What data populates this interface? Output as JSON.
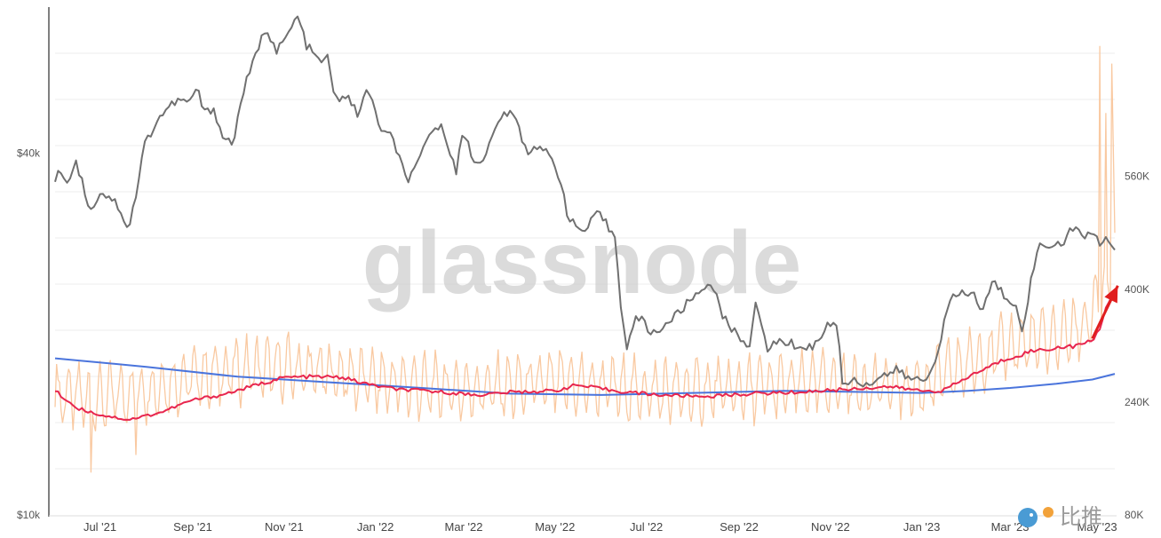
{
  "watermark": "glassnode",
  "badge": {
    "text": "比推"
  },
  "colors": {
    "price": "#707070",
    "addresses_daily": "#f9c9a1",
    "ma_short": "#e8264e",
    "ma_long": "#4a74dc",
    "annotation_arrow": "#e01e1e",
    "grid": "#ececec",
    "axis": "#555555"
  },
  "chart_data": {
    "type": "line",
    "title": "",
    "xlabel": "",
    "ylabel": "",
    "x_tick_labels": [
      "Jul '21",
      "Sep '21",
      "Nov '21",
      "Jan '22",
      "Mar '22",
      "May '22",
      "Jul '22",
      "Sep '22",
      "Nov '22",
      "Jan '23",
      "Mar '23",
      "May '23"
    ],
    "x_range": [
      "2021-06-01",
      "2023-05-10"
    ],
    "left_axis": {
      "scale": "log",
      "range": [
        10000,
        70000
      ],
      "tick_labels": [
        {
          "label": "$10k",
          "value": 10000
        },
        {
          "label": "$40k",
          "value": 40000
        }
      ]
    },
    "right_axis": {
      "scale": "linear",
      "range": [
        80000,
        800000
      ],
      "tick_labels": [
        {
          "label": "80K",
          "value": 80000
        },
        {
          "label": "240K",
          "value": 240000
        },
        {
          "label": "400K",
          "value": 400000
        },
        {
          "label": "560K",
          "value": 560000
        }
      ]
    },
    "grid": true,
    "legend": "none",
    "series": [
      {
        "id": "price",
        "axis": "left",
        "style": "line",
        "points": [
          [
            "2021-06-01",
            36000
          ],
          [
            "2021-06-05",
            37500
          ],
          [
            "2021-06-10",
            35500
          ],
          [
            "2021-06-15",
            39000
          ],
          [
            "2021-06-20",
            35000
          ],
          [
            "2021-06-25",
            32000
          ],
          [
            "2021-07-01",
            34500
          ],
          [
            "2021-07-10",
            33500
          ],
          [
            "2021-07-15",
            32000
          ],
          [
            "2021-07-20",
            29800
          ],
          [
            "2021-07-25",
            34000
          ],
          [
            "2021-07-31",
            41500
          ],
          [
            "2021-08-10",
            46000
          ],
          [
            "2021-08-15",
            47500
          ],
          [
            "2021-08-22",
            49000
          ],
          [
            "2021-08-28",
            48500
          ],
          [
            "2021-09-05",
            51000
          ],
          [
            "2021-09-08",
            46500
          ],
          [
            "2021-09-15",
            47500
          ],
          [
            "2021-09-21",
            42500
          ],
          [
            "2021-09-28",
            41500
          ],
          [
            "2021-10-05",
            51000
          ],
          [
            "2021-10-12",
            57000
          ],
          [
            "2021-10-20",
            65000
          ],
          [
            "2021-10-27",
            59000
          ],
          [
            "2021-11-02",
            62000
          ],
          [
            "2021-11-10",
            67500
          ],
          [
            "2021-11-16",
            60500
          ],
          [
            "2021-11-24",
            57000
          ],
          [
            "2021-11-30",
            57500
          ],
          [
            "2021-12-05",
            49000
          ],
          [
            "2021-12-12",
            50000
          ],
          [
            "2021-12-20",
            46500
          ],
          [
            "2021-12-27",
            51000
          ],
          [
            "2022-01-05",
            43500
          ],
          [
            "2022-01-12",
            42500
          ],
          [
            "2022-01-22",
            36000
          ],
          [
            "2022-01-28",
            37500
          ],
          [
            "2022-02-08",
            44000
          ],
          [
            "2022-02-15",
            44000
          ],
          [
            "2022-02-24",
            37500
          ],
          [
            "2022-03-01",
            43500
          ],
          [
            "2022-03-08",
            38500
          ],
          [
            "2022-03-15",
            39500
          ],
          [
            "2022-03-28",
            47000
          ],
          [
            "2022-04-05",
            45500
          ],
          [
            "2022-04-12",
            40000
          ],
          [
            "2022-04-20",
            41500
          ],
          [
            "2022-04-30",
            38500
          ],
          [
            "2022-05-05",
            36000
          ],
          [
            "2022-05-10",
            31000
          ],
          [
            "2022-05-20",
            29500
          ],
          [
            "2022-05-30",
            31800
          ],
          [
            "2022-06-10",
            29000
          ],
          [
            "2022-06-14",
            22500
          ],
          [
            "2022-06-18",
            19000
          ],
          [
            "2022-06-25",
            21500
          ],
          [
            "2022-07-05",
            20000
          ],
          [
            "2022-07-15",
            20800
          ],
          [
            "2022-07-25",
            22000
          ],
          [
            "2022-08-01",
            23000
          ],
          [
            "2022-08-14",
            24500
          ],
          [
            "2022-08-20",
            21500
          ],
          [
            "2022-08-30",
            20000
          ],
          [
            "2022-09-08",
            19200
          ],
          [
            "2022-09-12",
            22200
          ],
          [
            "2022-09-20",
            19000
          ],
          [
            "2022-09-30",
            19500
          ],
          [
            "2022-10-10",
            19100
          ],
          [
            "2022-10-20",
            19000
          ],
          [
            "2022-10-30",
            20600
          ],
          [
            "2022-11-05",
            21000
          ],
          [
            "2022-11-09",
            16500
          ],
          [
            "2022-11-15",
            16800
          ],
          [
            "2022-11-25",
            16500
          ],
          [
            "2022-12-05",
            17000
          ],
          [
            "2022-12-15",
            17400
          ],
          [
            "2022-12-25",
            16800
          ],
          [
            "2023-01-05",
            16800
          ],
          [
            "2023-01-12",
            18900
          ],
          [
            "2023-01-20",
            22700
          ],
          [
            "2023-01-28",
            23500
          ],
          [
            "2023-02-05",
            23200
          ],
          [
            "2023-02-10",
            21800
          ],
          [
            "2023-02-18",
            24500
          ],
          [
            "2023-02-25",
            23200
          ],
          [
            "2023-03-05",
            22400
          ],
          [
            "2023-03-10",
            20100
          ],
          [
            "2023-03-15",
            24500
          ],
          [
            "2023-03-20",
            28000
          ],
          [
            "2023-03-30",
            28300
          ],
          [
            "2023-04-05",
            28200
          ],
          [
            "2023-04-12",
            30200
          ],
          [
            "2023-04-20",
            28800
          ],
          [
            "2023-04-26",
            29500
          ],
          [
            "2023-05-01",
            28200
          ],
          [
            "2023-05-06",
            28900
          ],
          [
            "2023-05-10",
            27800
          ]
        ]
      },
      {
        "id": "addresses_ma_long",
        "axis": "right",
        "style": "line",
        "points": [
          [
            "2021-06-01",
            302000
          ],
          [
            "2021-08-01",
            290000
          ],
          [
            "2021-10-01",
            276000
          ],
          [
            "2021-12-01",
            268000
          ],
          [
            "2022-02-01",
            260000
          ],
          [
            "2022-04-01",
            252000
          ],
          [
            "2022-06-01",
            250000
          ],
          [
            "2022-08-01",
            253000
          ],
          [
            "2022-10-01",
            256000
          ],
          [
            "2022-12-01",
            254000
          ],
          [
            "2023-01-01",
            253000
          ],
          [
            "2023-02-01",
            256000
          ],
          [
            "2023-03-01",
            260000
          ],
          [
            "2023-04-01",
            266000
          ],
          [
            "2023-04-25",
            272000
          ],
          [
            "2023-05-10",
            280000
          ]
        ]
      },
      {
        "id": "addresses_ma_short",
        "axis": "right",
        "style": "line",
        "points": [
          [
            "2021-06-01",
            256000
          ],
          [
            "2021-06-15",
            232000
          ],
          [
            "2021-07-01",
            222000
          ],
          [
            "2021-07-20",
            215000
          ],
          [
            "2021-08-10",
            225000
          ],
          [
            "2021-09-01",
            243000
          ],
          [
            "2021-09-20",
            250000
          ],
          [
            "2021-10-10",
            262000
          ],
          [
            "2021-11-01",
            275000
          ],
          [
            "2021-11-20",
            276000
          ],
          [
            "2021-12-10",
            275000
          ],
          [
            "2021-12-25",
            266000
          ],
          [
            "2022-01-15",
            258000
          ],
          [
            "2022-02-10",
            255000
          ],
          [
            "2022-03-10",
            250000
          ],
          [
            "2022-04-01",
            254000
          ],
          [
            "2022-05-01",
            256000
          ],
          [
            "2022-05-15",
            264000
          ],
          [
            "2022-06-10",
            256000
          ],
          [
            "2022-07-10",
            250000
          ],
          [
            "2022-08-10",
            248000
          ],
          [
            "2022-09-10",
            252000
          ],
          [
            "2022-10-10",
            254000
          ],
          [
            "2022-11-10",
            258000
          ],
          [
            "2022-12-10",
            262000
          ],
          [
            "2023-01-01",
            256000
          ],
          [
            "2023-01-15",
            256000
          ],
          [
            "2023-02-05",
            280000
          ],
          [
            "2023-02-25",
            300000
          ],
          [
            "2023-03-15",
            312000
          ],
          [
            "2023-04-01",
            317000
          ],
          [
            "2023-04-15",
            320000
          ],
          [
            "2023-04-25",
            326000
          ],
          [
            "2023-05-01",
            350000
          ],
          [
            "2023-05-06",
            385000
          ],
          [
            "2023-05-10",
            400000
          ]
        ]
      },
      {
        "id": "addresses_daily",
        "axis": "right",
        "style": "oscillating",
        "base_points": [
          [
            "2021-06-01",
            250000
          ],
          [
            "2021-07-01",
            245000
          ],
          [
            "2021-08-01",
            258000
          ],
          [
            "2021-09-01",
            275000
          ],
          [
            "2021-10-01",
            285000
          ],
          [
            "2021-11-01",
            288000
          ],
          [
            "2021-12-01",
            282000
          ],
          [
            "2022-01-01",
            270000
          ],
          [
            "2022-02-01",
            262000
          ],
          [
            "2022-03-01",
            258000
          ],
          [
            "2022-04-01",
            262000
          ],
          [
            "2022-05-01",
            268000
          ],
          [
            "2022-06-01",
            262000
          ],
          [
            "2022-07-01",
            255000
          ],
          [
            "2022-08-01",
            255000
          ],
          [
            "2022-09-01",
            258000
          ],
          [
            "2022-10-01",
            262000
          ],
          [
            "2022-11-01",
            268000
          ],
          [
            "2022-12-01",
            262000
          ],
          [
            "2023-01-01",
            262000
          ],
          [
            "2023-02-01",
            295000
          ],
          [
            "2023-03-01",
            320000
          ],
          [
            "2023-04-01",
            330000
          ],
          [
            "2023-04-20",
            350000
          ],
          [
            "2023-05-10",
            420000
          ]
        ],
        "swing": 38000,
        "spikes": [
          [
            "2021-06-25",
            140000
          ],
          [
            "2021-07-25",
            165000
          ],
          [
            "2023-04-30",
            745000
          ],
          [
            "2023-05-04",
            650000
          ],
          [
            "2023-05-08",
            720000
          ],
          [
            "2023-05-09",
            600000
          ],
          [
            "2023-05-10",
            480000
          ]
        ]
      }
    ],
    "annotations": [
      {
        "type": "arrow",
        "from": [
          "2023-04-25",
          330000
        ],
        "to": [
          "2023-05-12",
          405000
        ]
      }
    ]
  }
}
